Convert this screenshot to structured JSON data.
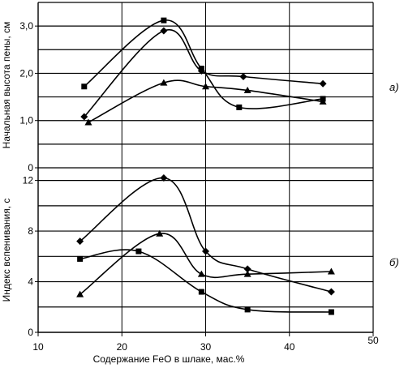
{
  "chart_data": [
    {
      "type": "line",
      "panel_label": "а)",
      "ylabel": "Начальная высота пены, см",
      "xlim": [
        10,
        50
      ],
      "ylim": [
        0,
        3.5
      ],
      "yticks": [
        "0",
        "1,0",
        "2,0",
        "3,0"
      ],
      "grid": "horizontal",
      "series": [
        {
          "marker": "square",
          "x": [
            15.5,
            25,
            29.5,
            34,
            44
          ],
          "y": [
            1.72,
            3.12,
            2.1,
            1.28,
            1.46
          ]
        },
        {
          "marker": "diamond",
          "x": [
            15.5,
            25,
            29.5,
            34.5,
            44
          ],
          "y": [
            1.08,
            2.9,
            2.05,
            1.93,
            1.78
          ]
        },
        {
          "marker": "triangle",
          "x": [
            16,
            25,
            30,
            35,
            44
          ],
          "y": [
            0.96,
            1.8,
            1.72,
            1.64,
            1.4
          ]
        }
      ]
    },
    {
      "type": "line",
      "panel_label": "б)",
      "ylabel": "Индекс вспенивания, с",
      "xlabel": "Содержание FeO в шлаке, мас.%",
      "xlim": [
        10,
        50
      ],
      "ylim": [
        0,
        13
      ],
      "xticks": [
        "10",
        "20",
        "30",
        "40",
        "50"
      ],
      "yticks": [
        "0",
        "4",
        "8",
        "12"
      ],
      "grid": "horizontal",
      "series": [
        {
          "marker": "diamond",
          "x": [
            15,
            25,
            30,
            35,
            45
          ],
          "y": [
            7.2,
            12.2,
            6.4,
            5.0,
            3.2
          ]
        },
        {
          "marker": "triangle",
          "x": [
            15,
            24.5,
            29.5,
            35,
            45
          ],
          "y": [
            3.0,
            7.8,
            4.6,
            4.6,
            4.8
          ]
        },
        {
          "marker": "square",
          "x": [
            15,
            22,
            29.5,
            35,
            45
          ],
          "y": [
            5.8,
            6.4,
            3.2,
            1.8,
            1.6
          ]
        }
      ]
    }
  ]
}
